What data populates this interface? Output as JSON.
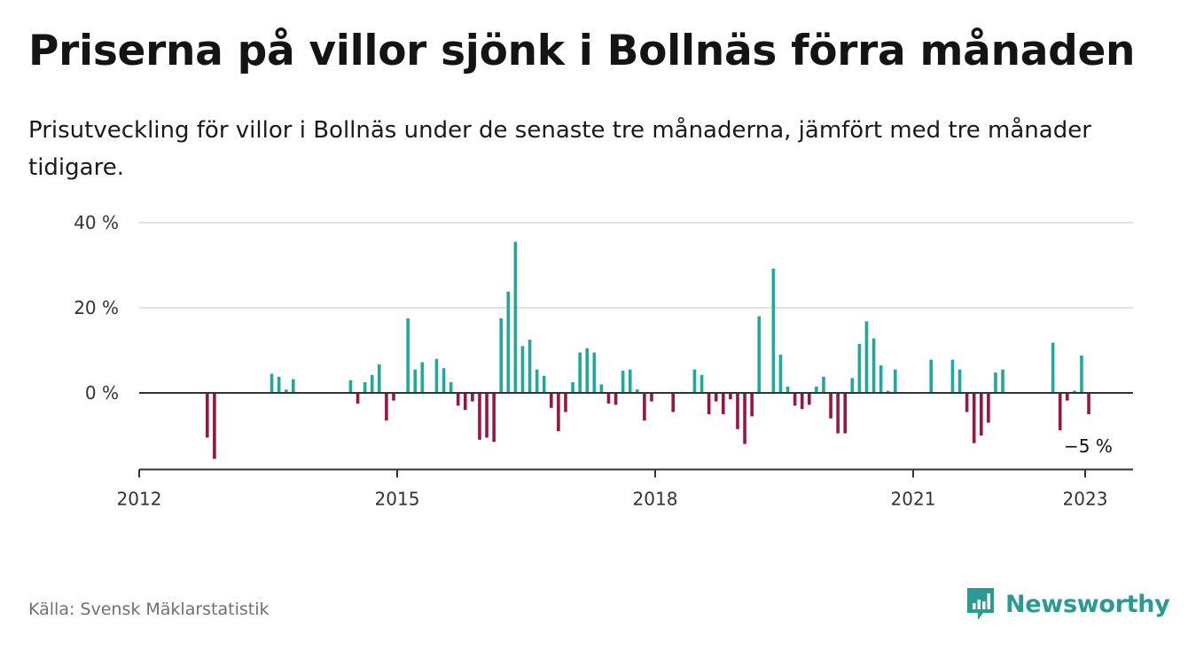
{
  "title": "Priserna på villor sjönk i Bollnäs förra månaden",
  "subtitle": "Prisutveckling för villor i Bollnäs under de senaste tre månaderna, jämfört med tre månader tidigare.",
  "source": "Källa: Svensk Mäklarstatistik",
  "brand": {
    "name": "Newsworthy",
    "icon": "newsworthy-logo-icon"
  },
  "colors": {
    "positive": "#1fa89c",
    "negative": "#9b1443",
    "axis": "#333333",
    "grid": "#d9d9d9"
  },
  "chart_data": {
    "type": "bar",
    "title": "Priserna på villor sjönk i Bollnäs förra månaden",
    "xlabel": "",
    "ylabel": "",
    "ylim": [
      -18,
      40
    ],
    "xlim": [
      "2012-01",
      "2023-07"
    ],
    "y_ticks": [
      {
        "value": 0,
        "label": "0 %"
      },
      {
        "value": 20,
        "label": "20 %"
      },
      {
        "value": 40,
        "label": "40 %"
      }
    ],
    "x_ticks": [
      {
        "date": "2012-01",
        "label": "2012"
      },
      {
        "date": "2015-01",
        "label": "2015"
      },
      {
        "date": "2018-01",
        "label": "2018"
      },
      {
        "date": "2021-01",
        "label": "2021"
      },
      {
        "date": "2023-01",
        "label": "2023"
      }
    ],
    "grid": true,
    "end_label": {
      "date": "2023-01",
      "text": "−5 %"
    },
    "series": [
      {
        "points": [
          [
            "2012-10",
            -10.5
          ],
          [
            "2012-11",
            -15.5
          ],
          [
            "2013-07",
            4.5
          ],
          [
            "2013-08",
            3.8
          ],
          [
            "2013-09",
            0.8
          ],
          [
            "2013-10",
            3.2
          ],
          [
            "2014-06",
            3.0
          ],
          [
            "2014-07",
            -2.5
          ],
          [
            "2014-08",
            2.5
          ],
          [
            "2014-09",
            4.2
          ],
          [
            "2014-10",
            6.7
          ],
          [
            "2014-11",
            -6.5
          ],
          [
            "2014-12",
            -1.8
          ],
          [
            "2015-02",
            17.5
          ],
          [
            "2015-03",
            5.5
          ],
          [
            "2015-04",
            7.2
          ],
          [
            "2015-06",
            8.0
          ],
          [
            "2015-07",
            5.8
          ],
          [
            "2015-08",
            2.5
          ],
          [
            "2015-09",
            -3.0
          ],
          [
            "2015-10",
            -4.0
          ],
          [
            "2015-11",
            -2.0
          ],
          [
            "2015-12",
            -11.0
          ],
          [
            "2016-01",
            -10.5
          ],
          [
            "2016-02",
            -11.5
          ],
          [
            "2016-03",
            17.5
          ],
          [
            "2016-04",
            23.8
          ],
          [
            "2016-05",
            35.5
          ],
          [
            "2016-06",
            11.0
          ],
          [
            "2016-07",
            12.5
          ],
          [
            "2016-08",
            5.5
          ],
          [
            "2016-09",
            4.0
          ],
          [
            "2016-10",
            -3.5
          ],
          [
            "2016-11",
            -9.0
          ],
          [
            "2016-12",
            -4.5
          ],
          [
            "2017-01",
            2.5
          ],
          [
            "2017-02",
            9.5
          ],
          [
            "2017-03",
            10.5
          ],
          [
            "2017-04",
            9.5
          ],
          [
            "2017-05",
            2.0
          ],
          [
            "2017-06",
            -2.5
          ],
          [
            "2017-07",
            -2.8
          ],
          [
            "2017-08",
            5.2
          ],
          [
            "2017-09",
            5.5
          ],
          [
            "2017-10",
            0.8
          ],
          [
            "2017-11",
            -6.5
          ],
          [
            "2017-12",
            -2.0
          ],
          [
            "2018-03",
            -4.5
          ],
          [
            "2018-06",
            5.5
          ],
          [
            "2018-07",
            4.2
          ],
          [
            "2018-08",
            -5.0
          ],
          [
            "2018-09",
            -2.0
          ],
          [
            "2018-10",
            -5.0
          ],
          [
            "2018-11",
            -1.5
          ],
          [
            "2018-12",
            -8.5
          ],
          [
            "2019-01",
            -12.0
          ],
          [
            "2019-02",
            -5.5
          ],
          [
            "2019-03",
            18.0
          ],
          [
            "2019-05",
            29.2
          ],
          [
            "2019-06",
            9.0
          ],
          [
            "2019-07",
            1.5
          ],
          [
            "2019-08",
            -3.0
          ],
          [
            "2019-09",
            -3.8
          ],
          [
            "2019-10",
            -2.8
          ],
          [
            "2019-11",
            1.5
          ],
          [
            "2019-12",
            3.8
          ],
          [
            "2020-01",
            -6.0
          ],
          [
            "2020-02",
            -9.5
          ],
          [
            "2020-03",
            -9.5
          ],
          [
            "2020-04",
            3.5
          ],
          [
            "2020-05",
            11.5
          ],
          [
            "2020-06",
            16.8
          ],
          [
            "2020-07",
            12.8
          ],
          [
            "2020-08",
            6.5
          ],
          [
            "2020-09",
            0.5
          ],
          [
            "2020-10",
            5.5
          ],
          [
            "2021-03",
            7.8
          ],
          [
            "2021-06",
            7.8
          ],
          [
            "2021-07",
            5.5
          ],
          [
            "2021-08",
            -4.5
          ],
          [
            "2021-09",
            -11.8
          ],
          [
            "2021-10",
            -10.0
          ],
          [
            "2021-11",
            -7.0
          ],
          [
            "2021-12",
            4.8
          ],
          [
            "2022-01",
            5.5
          ],
          [
            "2022-08",
            11.8
          ],
          [
            "2022-09",
            -8.8
          ],
          [
            "2022-10",
            -1.8
          ],
          [
            "2022-11",
            0.5
          ],
          [
            "2022-12",
            8.8
          ],
          [
            "2023-01",
            -5.0
          ]
        ]
      }
    ]
  }
}
